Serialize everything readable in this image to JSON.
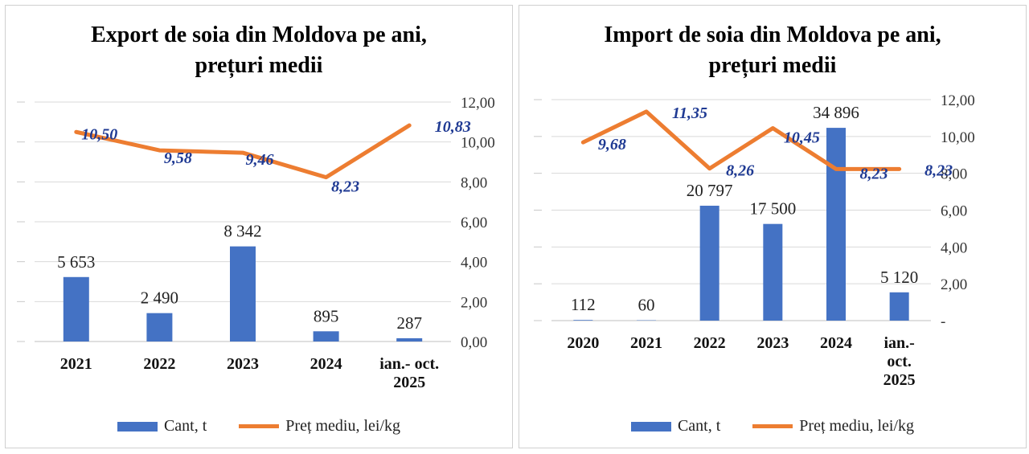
{
  "colors": {
    "bar": "#4472c4",
    "line": "#ed7d31",
    "price_label": "#1f3a93"
  },
  "chart_data": [
    {
      "type": "bar",
      "title": "Export de soia din  Moldova pe ani,\nprețuri medii",
      "categories": [
        "2021",
        "2022",
        "2023",
        "2024",
        "ian.- oct.\n2025"
      ],
      "series": [
        {
          "name": "Cant, t",
          "type": "bar",
          "axis": "left",
          "values": [
            5653,
            2490,
            8342,
            895,
            287
          ],
          "labels": [
            "5 653",
            "2 490",
            "8 342",
            "895",
            "287"
          ]
        },
        {
          "name": "Preț mediu, lei/kg",
          "type": "line",
          "axis": "right",
          "values": [
            10.5,
            9.58,
            9.46,
            8.23,
            10.83
          ],
          "labels": [
            "10,50",
            "9,58",
            "9,46",
            "8,23",
            "10,83"
          ]
        }
      ],
      "left_axis": {
        "range": [
          0,
          21000
        ],
        "tick_labels_visible": false
      },
      "right_axis": {
        "range": [
          0,
          12
        ],
        "ticks": [
          "0,00",
          "2,00",
          "4,00",
          "6,00",
          "8,00",
          "10,00",
          "12,00"
        ]
      },
      "grid": true,
      "legend": "bottom"
    },
    {
      "type": "bar",
      "title": "Import de soia din  Moldova pe ani,\nprețuri medii",
      "categories": [
        "2020",
        "2021",
        "2022",
        "2023",
        "2024",
        "ian.-\noct.\n2025"
      ],
      "series": [
        {
          "name": "Cant, t",
          "type": "bar",
          "axis": "left",
          "values": [
            112,
            60,
            20797,
            17500,
            34896,
            5120
          ],
          "labels": [
            "112",
            "60",
            "20 797",
            "17 500",
            "34 896",
            "5 120"
          ]
        },
        {
          "name": "Preț mediu, lei/kg",
          "type": "line",
          "axis": "right",
          "values": [
            9.68,
            11.35,
            8.26,
            10.45,
            8.23,
            8.23
          ],
          "labels": [
            "9,68",
            "11,35",
            "8,26",
            "10,45",
            "8,23",
            "8,23"
          ]
        }
      ],
      "left_axis": {
        "range": [
          0,
          40000
        ],
        "tick_labels_visible": false
      },
      "right_axis": {
        "range": [
          0,
          12
        ],
        "ticks": [
          "-",
          "2,00",
          "4,00",
          "6,00",
          "8,00",
          "10,00",
          "12,00"
        ]
      },
      "grid": true,
      "legend": "bottom"
    }
  ]
}
